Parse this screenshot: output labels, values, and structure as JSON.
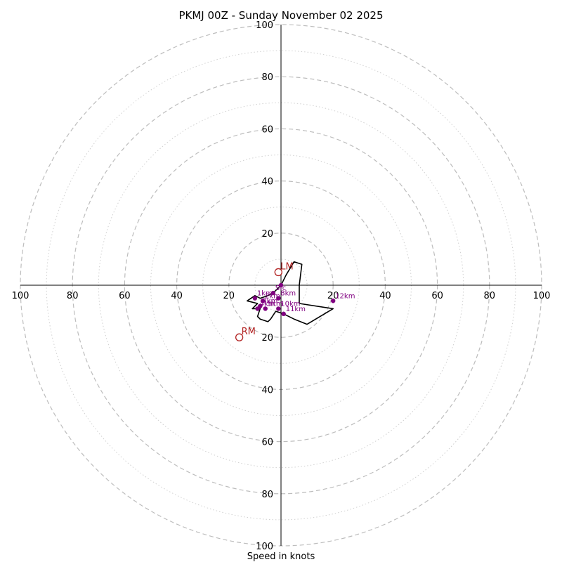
{
  "chart_data": {
    "type": "hodograph",
    "title": "PKMJ 00Z - Sunday November 02 2025",
    "xlabel": "Speed in knots",
    "ylabel": "",
    "range": 100,
    "ring_major": [
      20,
      40,
      60,
      80,
      100
    ],
    "ring_minor": [
      10,
      30,
      50,
      70,
      90
    ],
    "ticks": [
      {
        "value": 20,
        "label": "20"
      },
      {
        "value": 40,
        "label": "40"
      },
      {
        "value": 60,
        "label": "60"
      },
      {
        "value": 80,
        "label": "80"
      },
      {
        "value": 100,
        "label": "100"
      }
    ],
    "trace": [
      [
        0,
        0
      ],
      [
        2,
        4
      ],
      [
        5,
        9
      ],
      [
        8,
        8
      ],
      [
        7,
        0
      ],
      [
        7,
        -7
      ],
      [
        20,
        -9
      ],
      [
        10,
        -15
      ],
      [
        5,
        -13
      ],
      [
        1,
        -11
      ],
      [
        -2,
        -10
      ],
      [
        -4,
        -13
      ],
      [
        -5,
        -14
      ],
      [
        -8,
        -13
      ],
      [
        -9,
        -12
      ],
      [
        -8,
        -9
      ],
      [
        -11,
        -9
      ],
      [
        -9,
        -7
      ],
      [
        -13,
        -6
      ],
      [
        -10,
        -4
      ],
      [
        -8,
        -5
      ],
      [
        -5,
        -4
      ],
      [
        -3,
        -3
      ],
      [
        -1,
        -1
      ],
      [
        0,
        0
      ]
    ],
    "points": [
      {
        "u": 0,
        "v": 0
      },
      {
        "u": -3,
        "v": -3,
        "label": "Sfc"
      },
      {
        "u": -10,
        "v": -5,
        "label": "1km"
      },
      {
        "u": -7,
        "v": -6,
        "label": "2km"
      },
      {
        "u": -8,
        "v": -8,
        "label": "3km"
      },
      {
        "u": -9,
        "v": -9,
        "label": "4km"
      },
      {
        "u": -6,
        "v": -9,
        "label": "5km"
      },
      {
        "u": -1,
        "v": -5,
        "label": "8km"
      },
      {
        "u": -1,
        "v": -9,
        "label": "10km"
      },
      {
        "u": 1,
        "v": -11,
        "label": "11km"
      },
      {
        "u": 20,
        "v": -6,
        "label": "12km"
      }
    ],
    "storm_motion": [
      {
        "u": -1,
        "v": 5,
        "label": "LM",
        "color": "#b22222"
      },
      {
        "u": -16,
        "v": -20,
        "label": "RM",
        "color": "#b22222"
      }
    ],
    "colors": {
      "trace": "#000000",
      "points": "#800080",
      "rings": "#bdbdbd"
    }
  }
}
